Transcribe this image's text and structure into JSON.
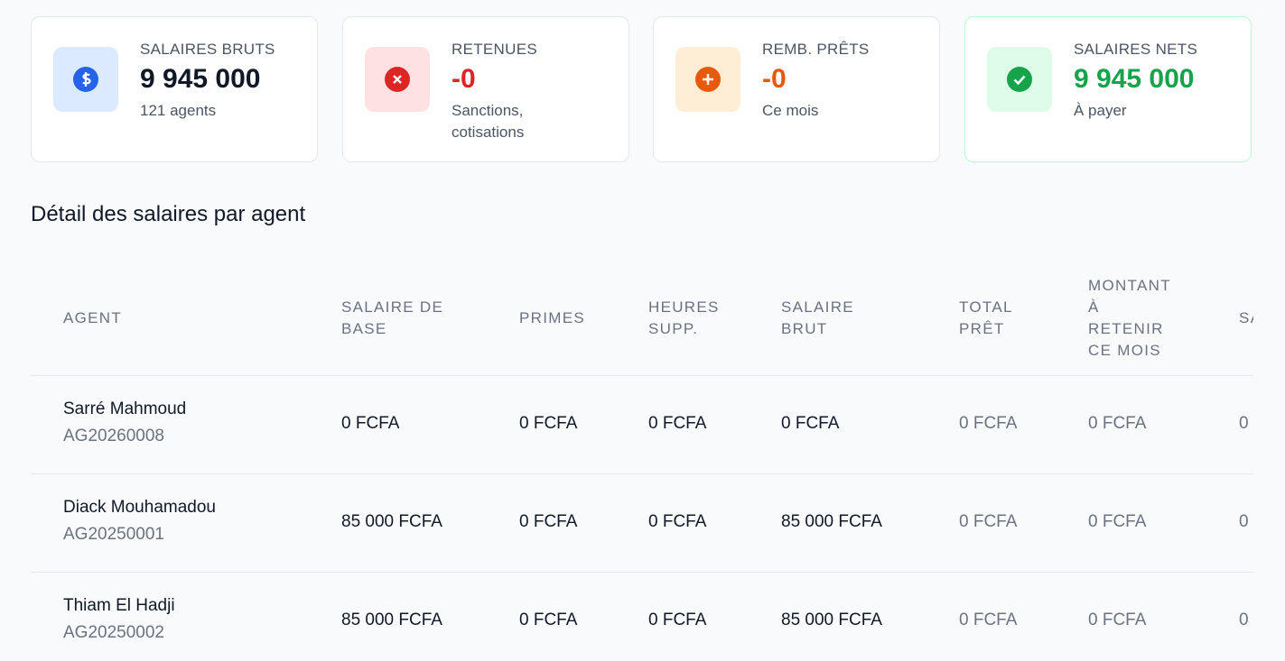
{
  "cards": [
    {
      "label": "SALAIRES BRUTS",
      "value": "9 945 000",
      "note": "121 agents"
    },
    {
      "label": "RETENUES",
      "value": "-0",
      "note": "Sanctions, cotisations"
    },
    {
      "label": "REMB. PRÊTS",
      "value": "-0",
      "note": "Ce mois"
    },
    {
      "label": "SALAIRES NETS",
      "value": "9 945 000",
      "note": "À payer"
    }
  ],
  "section_title": "Détail des salaires par agent",
  "table": {
    "headers": [
      "AGENT",
      "SALAIRE DE BASE",
      "PRIMES",
      "HEURES SUPP.",
      "SALAIRE BRUT",
      "TOTAL PRÊT",
      "MONTANT À RETENIR CE MOIS",
      "SA"
    ],
    "rows": [
      {
        "name": "Sarré Mahmoud",
        "id": "AG20260008",
        "cells": [
          "0 FCFA",
          "0 FCFA",
          "0 FCFA",
          "0 FCFA",
          "0 FCFA",
          "0 FCFA",
          "0"
        ]
      },
      {
        "name": "Diack Mouhamadou",
        "id": "AG20250001",
        "cells": [
          "85 000 FCFA",
          "0 FCFA",
          "0 FCFA",
          "85 000 FCFA",
          "0 FCFA",
          "0 FCFA",
          "0"
        ]
      },
      {
        "name": "Thiam El Hadji",
        "id": "AG20250002",
        "cells": [
          "85 000 FCFA",
          "0 FCFA",
          "0 FCFA",
          "85 000 FCFA",
          "0 FCFA",
          "0 FCFA",
          "0"
        ]
      }
    ]
  }
}
